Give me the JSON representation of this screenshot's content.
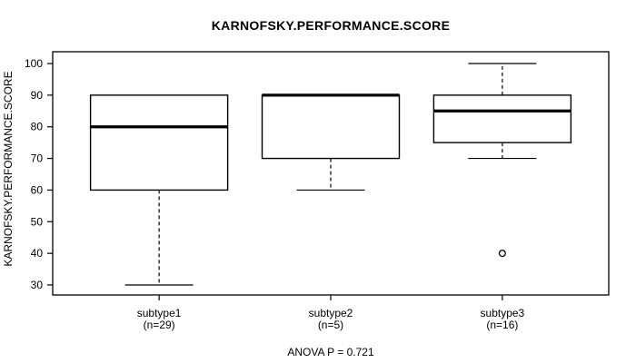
{
  "chart_data": {
    "type": "boxplot",
    "title": "KARNOFSKY.PERFORMANCE.SCORE",
    "ylabel": "KARNOFSKY.PERFORMANCE.SCORE",
    "xlabel": "",
    "annotation": "ANOVA P = 0.721",
    "ylim": [
      30,
      100
    ],
    "yticks": [
      30,
      40,
      50,
      60,
      70,
      80,
      90,
      100
    ],
    "grid": false,
    "legend": "none",
    "groups": [
      {
        "label": "subtype1",
        "n_label": "(n=29)",
        "whisker_low": 30,
        "q1": 60,
        "median": 80,
        "q3": 90,
        "whisker_high": 90,
        "outliers": []
      },
      {
        "label": "subtype2",
        "n_label": "(n=5)",
        "whisker_low": 60,
        "q1": 70,
        "median": 90,
        "q3": 90,
        "whisker_high": 90,
        "outliers": []
      },
      {
        "label": "subtype3",
        "n_label": "(n=16)",
        "whisker_low": 70,
        "q1": 75,
        "median": 85,
        "q3": 90,
        "whisker_high": 100,
        "outliers": [
          40
        ]
      }
    ],
    "colors": {
      "line": "#000000",
      "box_fill": "#ffffff",
      "background": "#ffffff"
    }
  }
}
